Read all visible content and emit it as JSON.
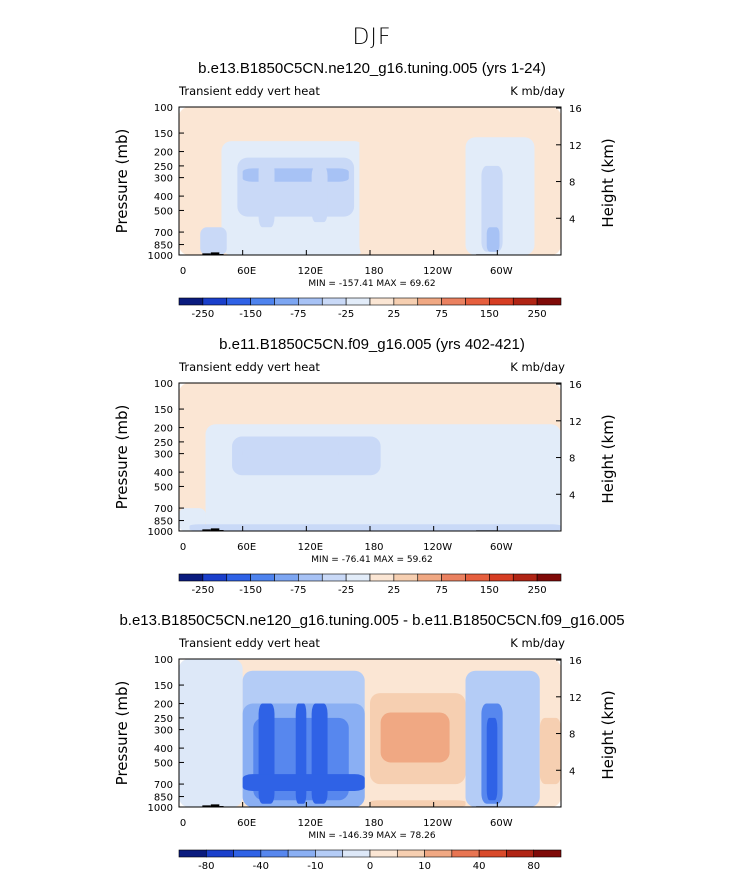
{
  "title": "DJF",
  "chart_data": [
    {
      "type": "heatmap",
      "title": "b.e13.B1850C5CN.ne120_g16.tuning.005 (yrs 1-24)",
      "left_label": "Transient eddy vert heat",
      "right_label": "K mb/day",
      "ylabel": "Pressure (mb)",
      "ylabel_right": "Height (km)",
      "x_ticks": [
        "0",
        "60E",
        "120E",
        "180",
        "120W",
        "60W"
      ],
      "y_ticks": [
        "100",
        "150",
        "200",
        "250",
        "300",
        "400",
        "500",
        "700",
        "850",
        "1000"
      ],
      "y_right_ticks": [
        "16",
        "12",
        "8",
        "4"
      ],
      "stats": "MIN = -157.41   MAX =   69.62",
      "levels": [
        -300,
        -250,
        -200,
        -150,
        -100,
        -75,
        -50,
        -25,
        -10,
        10,
        25,
        50,
        75,
        100,
        150,
        200,
        250,
        300
      ],
      "colorbar_labels": [
        "-250",
        "-150",
        "-75",
        "-25",
        "25",
        "75",
        "150",
        "250"
      ],
      "regions": [
        {
          "lon": [
            0,
            360
          ],
          "p": [
            100,
            1000
          ],
          "value": 5
        },
        {
          "lon": [
            40,
            175
          ],
          "p": [
            170,
            1000
          ],
          "value": -15
        },
        {
          "lon": [
            55,
            165
          ],
          "p": [
            220,
            550
          ],
          "value": -30
        },
        {
          "lon": [
            60,
            160
          ],
          "p": [
            260,
            320
          ],
          "value": -55
        },
        {
          "lon": [
            75,
            90
          ],
          "p": [
            230,
            650
          ],
          "value": -45
        },
        {
          "lon": [
            125,
            140
          ],
          "p": [
            250,
            600
          ],
          "value": -45
        },
        {
          "lon": [
            170,
            185
          ],
          "p": [
            100,
            1000
          ],
          "value": 5
        },
        {
          "lon": [
            270,
            335
          ],
          "p": [
            160,
            1000
          ],
          "value": -15
        },
        {
          "lon": [
            285,
            305
          ],
          "p": [
            250,
            950
          ],
          "value": -35
        },
        {
          "lon": [
            20,
            45
          ],
          "p": [
            650,
            1000
          ],
          "value": -40
        },
        {
          "lon": [
            290,
            302
          ],
          "p": [
            650,
            950
          ],
          "value": -60
        }
      ]
    },
    {
      "type": "heatmap",
      "title": "b.e11.B1850C5CN.f09_g16.005 (yrs 402-421)",
      "left_label": "Transient eddy vert heat",
      "right_label": "K mb/day",
      "ylabel": "Pressure (mb)",
      "ylabel_right": "Height (km)",
      "x_ticks": [
        "0",
        "60E",
        "120E",
        "180",
        "120W",
        "60W"
      ],
      "y_ticks": [
        "100",
        "150",
        "200",
        "250",
        "300",
        "400",
        "500",
        "700",
        "850",
        "1000"
      ],
      "y_right_ticks": [
        "16",
        "12",
        "8",
        "4"
      ],
      "stats": "MIN =  -76.41   MAX =   59.62",
      "levels": [
        -300,
        -250,
        -200,
        -150,
        -100,
        -75,
        -50,
        -25,
        -10,
        10,
        25,
        50,
        75,
        100,
        150,
        200,
        250,
        300
      ],
      "colorbar_labels": [
        "-250",
        "-150",
        "-75",
        "-25",
        "25",
        "75",
        "150",
        "250"
      ],
      "regions": [
        {
          "lon": [
            0,
            360
          ],
          "p": [
            100,
            1000
          ],
          "value": 5
        },
        {
          "lon": [
            25,
            360
          ],
          "p": [
            190,
            1000
          ],
          "value": -15
        },
        {
          "lon": [
            50,
            190
          ],
          "p": [
            230,
            420
          ],
          "value": -30
        },
        {
          "lon": [
            60,
            150
          ],
          "p": [
            280,
            320
          ],
          "value": -35
        },
        {
          "lon": [
            0,
            25
          ],
          "p": [
            700,
            1000
          ],
          "value": -15
        },
        {
          "lon": [
            10,
            360
          ],
          "p": [
            900,
            1000
          ],
          "value": -30
        }
      ]
    },
    {
      "type": "heatmap",
      "title": "b.e13.B1850C5CN.ne120_g16.tuning.005 - b.e11.B1850C5CN.f09_g16.005",
      "left_label": "Transient eddy vert heat",
      "right_label": "K mb/day",
      "ylabel": "Pressure (mb)",
      "ylabel_right": "Height (km)",
      "x_ticks": [
        "0",
        "60E",
        "120E",
        "180",
        "120W",
        "60W"
      ],
      "y_ticks": [
        "100",
        "150",
        "200",
        "250",
        "300",
        "400",
        "500",
        "700",
        "850",
        "1000"
      ],
      "y_right_ticks": [
        "16",
        "12",
        "8",
        "4"
      ],
      "stats": "MIN = -146.39   MAX =   78.26",
      "levels": [
        -100,
        -80,
        -60,
        -40,
        -20,
        -10,
        -5,
        0,
        5,
        10,
        20,
        40,
        60,
        80,
        100
      ],
      "colorbar_labels": [
        "-80",
        "-40",
        "-10",
        "0",
        "10",
        "40",
        "80"
      ],
      "regions": [
        {
          "lon": [
            0,
            360
          ],
          "p": [
            100,
            1000
          ],
          "value": 2
        },
        {
          "lon": [
            0,
            60
          ],
          "p": [
            100,
            1000
          ],
          "value": -2
        },
        {
          "lon": [
            60,
            175
          ],
          "p": [
            120,
            1000
          ],
          "value": -7
        },
        {
          "lon": [
            60,
            175
          ],
          "p": [
            200,
            1000
          ],
          "value": -15
        },
        {
          "lon": [
            70,
            160
          ],
          "p": [
            250,
            900
          ],
          "value": -30
        },
        {
          "lon": [
            75,
            90
          ],
          "p": [
            200,
            950
          ],
          "value": -45
        },
        {
          "lon": [
            110,
            120
          ],
          "p": [
            200,
            950
          ],
          "value": -45
        },
        {
          "lon": [
            125,
            140
          ],
          "p": [
            200,
            950
          ],
          "value": -45
        },
        {
          "lon": [
            60,
            175
          ],
          "p": [
            600,
            780
          ],
          "value": -45
        },
        {
          "lon": [
            180,
            270
          ],
          "p": [
            170,
            700
          ],
          "value": 7
        },
        {
          "lon": [
            190,
            255
          ],
          "p": [
            230,
            500
          ],
          "value": 15
        },
        {
          "lon": [
            180,
            270
          ],
          "p": [
            900,
            1000
          ],
          "value": 7
        },
        {
          "lon": [
            270,
            340
          ],
          "p": [
            120,
            1000
          ],
          "value": -7
        },
        {
          "lon": [
            285,
            305
          ],
          "p": [
            200,
            950
          ],
          "value": -30
        },
        {
          "lon": [
            290,
            300
          ],
          "p": [
            250,
            900
          ],
          "value": -60
        },
        {
          "lon": [
            340,
            360
          ],
          "p": [
            250,
            700
          ],
          "value": 7
        }
      ]
    }
  ]
}
